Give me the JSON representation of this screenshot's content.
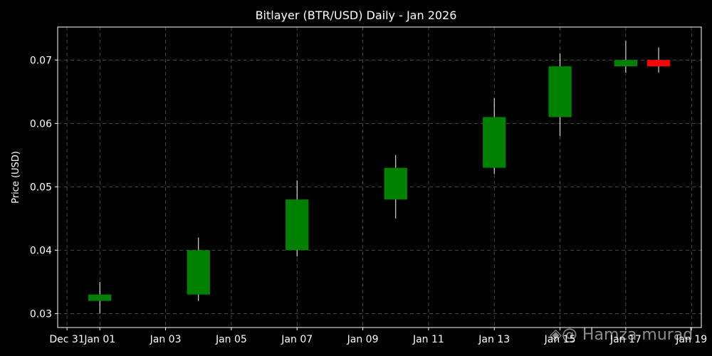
{
  "chart_data": {
    "type": "candlestick",
    "title": "Bitlayer (BTR/USD) Daily - Jan 2026",
    "xlabel": "",
    "ylabel": "Price (USD)",
    "x_range": [
      "2025-12-30T17:12",
      "2026-01-19T07:10"
    ],
    "ylim": [
      0.0278,
      0.0752
    ],
    "x_ticks": [
      {
        "date": "2025-12-31",
        "label": "Dec 31"
      },
      {
        "date": "2026-01-01",
        "label": "Jan 01"
      },
      {
        "date": "2026-01-03",
        "label": "Jan 03"
      },
      {
        "date": "2026-01-05",
        "label": "Jan 05"
      },
      {
        "date": "2026-01-07",
        "label": "Jan 07"
      },
      {
        "date": "2026-01-09",
        "label": "Jan 09"
      },
      {
        "date": "2026-01-11",
        "label": "Jan 11"
      },
      {
        "date": "2026-01-13",
        "label": "Jan 13"
      },
      {
        "date": "2026-01-15",
        "label": "Jan 15"
      },
      {
        "date": "2026-01-17",
        "label": "Jan 17"
      },
      {
        "date": "2026-01-19",
        "label": "Jan 19"
      }
    ],
    "y_ticks": [
      0.03,
      0.04,
      0.05,
      0.06,
      0.07
    ],
    "y_tick_labels": [
      "0.03",
      "0.04",
      "0.05",
      "0.06",
      "0.07"
    ],
    "grid": true,
    "candles": [
      {
        "date": "2026-01-01",
        "open": 0.032,
        "high": 0.035,
        "low": 0.03,
        "close": 0.033
      },
      {
        "date": "2026-01-04",
        "open": 0.033,
        "high": 0.042,
        "low": 0.032,
        "close": 0.04
      },
      {
        "date": "2026-01-07",
        "open": 0.04,
        "high": 0.051,
        "low": 0.039,
        "close": 0.048
      },
      {
        "date": "2026-01-10",
        "open": 0.048,
        "high": 0.055,
        "low": 0.045,
        "close": 0.053
      },
      {
        "date": "2026-01-13",
        "open": 0.053,
        "high": 0.064,
        "low": 0.052,
        "close": 0.061
      },
      {
        "date": "2026-01-15",
        "open": 0.061,
        "high": 0.071,
        "low": 0.058,
        "close": 0.069
      },
      {
        "date": "2026-01-17",
        "open": 0.069,
        "high": 0.073,
        "low": 0.068,
        "close": 0.07
      },
      {
        "date": "2026-01-18",
        "open": 0.07,
        "high": 0.072,
        "low": 0.068,
        "close": 0.069
      }
    ],
    "colors": {
      "up": "#008000",
      "down": "#ff0000",
      "wick": "#ffffff",
      "background": "#000000",
      "grid": "#555555",
      "text": "#ffffff"
    }
  },
  "watermark": "@ Hamza murad"
}
